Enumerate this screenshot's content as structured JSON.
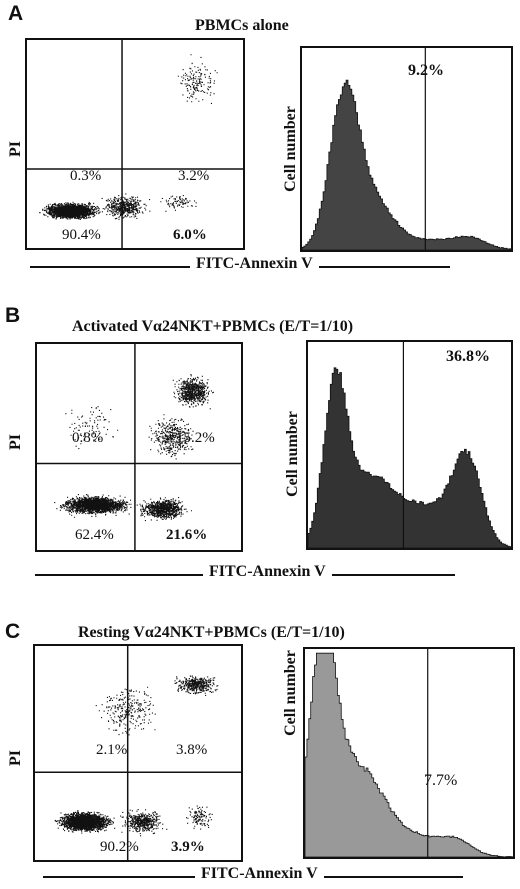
{
  "figure": {
    "panels": [
      {
        "letter": "A",
        "title": "PBMCs alone",
        "dot_ylabel": "PI",
        "hist_ylabel": "Cell number",
        "xlabel": "FITC-Annexin V",
        "quadrants": {
          "ul": "0.3%",
          "ur": "3.2%",
          "ll": "90.4%",
          "lr": "6.0%"
        },
        "hist_percent": "9.2%"
      },
      {
        "letter": "B",
        "title": "Activated Vα24NKT+PBMCs (E/T=1/10)",
        "dot_ylabel": "PI",
        "hist_ylabel": "Cell number",
        "xlabel": "FITC-Annexin V",
        "quadrants": {
          "ul": "0.8%",
          "ur": "15.2%",
          "ll": "62.4%",
          "lr": "21.6%"
        },
        "hist_percent": "36.8%"
      },
      {
        "letter": "C",
        "title": "Resting Vα24NKT+PBMCs (E/T=1/10)",
        "dot_ylabel": "PI",
        "hist_ylabel": "Cell number",
        "xlabel": "FITC-Annexin V",
        "quadrants": {
          "ul": "2.1%",
          "ur": "3.8%",
          "ll": "90.2%",
          "lr": "3.9%"
        },
        "hist_percent": "7.7%"
      }
    ]
  },
  "chart_data": [
    {
      "type": "scatter",
      "panel": "A",
      "title": "PBMCs alone",
      "xlabel": "FITC-Annexin V",
      "ylabel": "PI",
      "quadrant_percentages": {
        "upper_left": 0.3,
        "upper_right": 3.2,
        "lower_left": 90.4,
        "lower_right": 6.0
      }
    },
    {
      "type": "bar",
      "panel": "A",
      "xlabel": "FITC-Annexin V",
      "ylabel": "Cell number",
      "gated_percentage": 9.2
    },
    {
      "type": "scatter",
      "panel": "B",
      "title": "Activated Vα24NKT+PBMCs (E/T=1/10)",
      "xlabel": "FITC-Annexin V",
      "ylabel": "PI",
      "quadrant_percentages": {
        "upper_left": 0.8,
        "upper_right": 15.2,
        "lower_left": 62.4,
        "lower_right": 21.6
      }
    },
    {
      "type": "bar",
      "panel": "B",
      "xlabel": "FITC-Annexin V",
      "ylabel": "Cell number",
      "gated_percentage": 36.8
    },
    {
      "type": "scatter",
      "panel": "C",
      "title": "Resting Vα24NKT+PBMCs (E/T=1/10)",
      "xlabel": "FITC-Annexin V",
      "ylabel": "PI",
      "quadrant_percentages": {
        "upper_left": 2.1,
        "upper_right": 3.8,
        "lower_left": 90.2,
        "lower_right": 3.9
      }
    },
    {
      "type": "bar",
      "panel": "C",
      "xlabel": "FITC-Annexin V",
      "ylabel": "Cell number",
      "gated_percentage": 7.7
    }
  ]
}
